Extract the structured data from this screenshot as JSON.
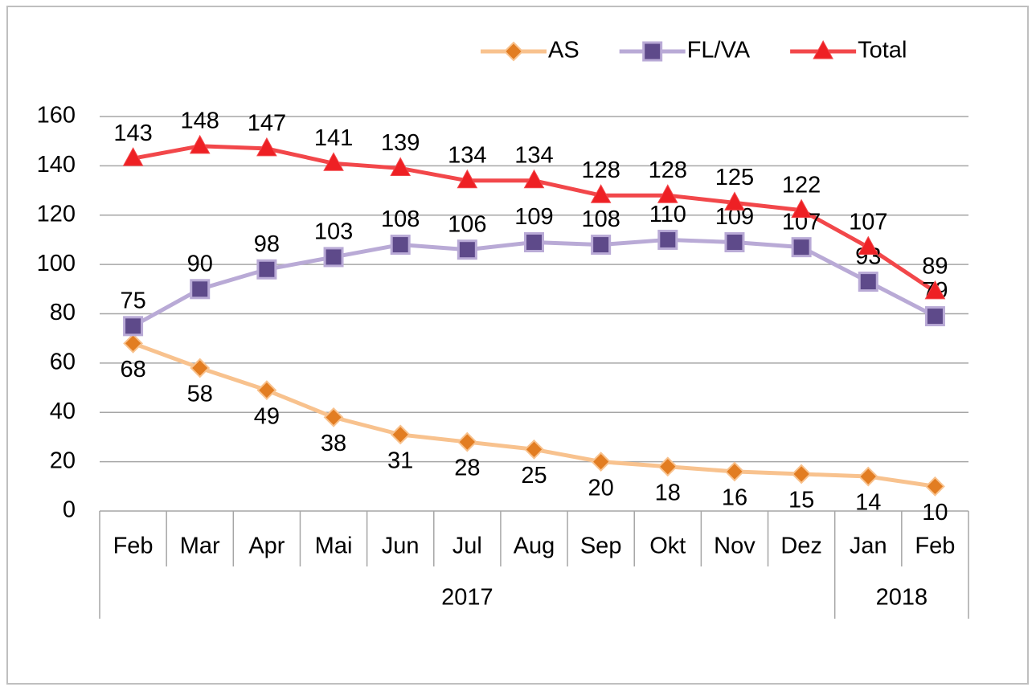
{
  "chart_data": {
    "type": "line",
    "categories": [
      "Feb",
      "Mar",
      "Apr",
      "Mai",
      "Jun",
      "Jul",
      "Aug",
      "Sep",
      "Okt",
      "Nov",
      "Dez",
      "Jan",
      "Feb"
    ],
    "category_years": [
      "2017",
      "2017",
      "2017",
      "2017",
      "2017",
      "2017",
      "2017",
      "2017",
      "2017",
      "2017",
      "2017",
      "2018",
      "2018"
    ],
    "series": [
      {
        "name": "AS",
        "color": "#f8c28e",
        "marker_color": "#e27d22",
        "marker": "diamond",
        "label_position": "below",
        "values": [
          68,
          58,
          49,
          38,
          31,
          28,
          25,
          20,
          18,
          16,
          15,
          14,
          10
        ]
      },
      {
        "name": "FL/VA",
        "color": "#b9aad6",
        "marker_color": "#5e4a8a",
        "marker": "square",
        "label_position": "above",
        "values": [
          75,
          90,
          98,
          103,
          108,
          106,
          109,
          108,
          110,
          109,
          107,
          93,
          79
        ]
      },
      {
        "name": "Total",
        "color": "#f2474a",
        "marker_color": "#ee2024",
        "marker": "triangle",
        "label_position": "above",
        "values": [
          143,
          148,
          147,
          141,
          139,
          134,
          134,
          128,
          128,
          125,
          122,
          107,
          89
        ]
      }
    ],
    "ylim": [
      0,
      160
    ],
    "yticks": [
      0,
      20,
      40,
      60,
      80,
      100,
      120,
      140,
      160
    ],
    "grid": true,
    "legend": "top-right"
  }
}
